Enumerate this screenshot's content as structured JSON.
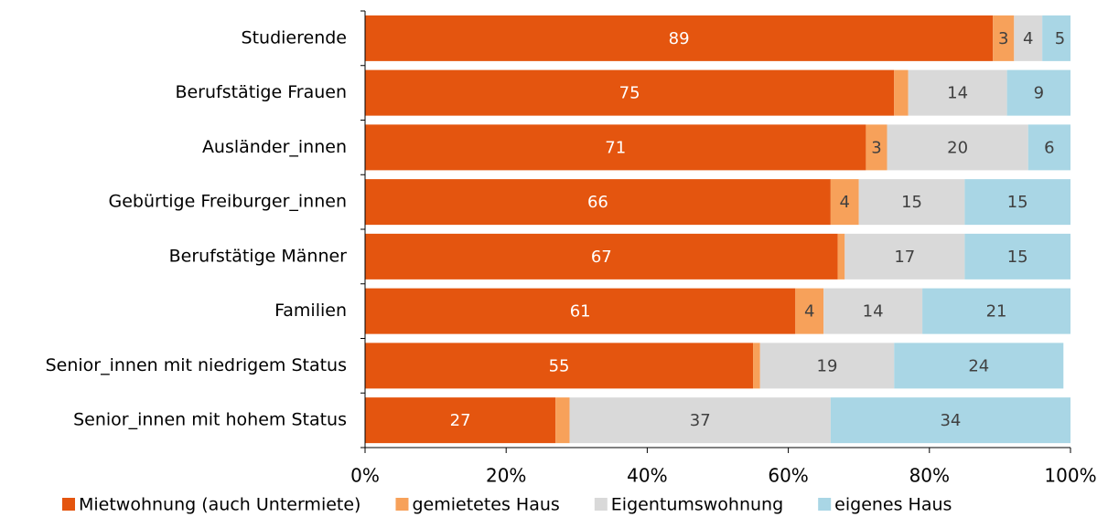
{
  "chart_data": {
    "type": "stacked-bar-horizontal",
    "categories": [
      "Studierende",
      "Berufstätige Frauen",
      "Ausländer_innen",
      "Gebürtige Freiburger_innen",
      "Berufstätige Männer",
      "Familien",
      "Senior_innen mit niedrigem Status",
      "Senior_innen mit hohem Status"
    ],
    "series": [
      {
        "name": "Mietwohnung (auch Untermiete)",
        "color": "#e4550f",
        "label_color": "#ffffff",
        "values": [
          89,
          75,
          71,
          66,
          67,
          61,
          55,
          27
        ]
      },
      {
        "name": "gemietetes Haus",
        "color": "#f7a15a",
        "label_color": "#404040",
        "values": [
          3,
          2,
          3,
          4,
          1,
          4,
          1,
          2
        ],
        "value_labels": [
          "3",
          null,
          "3",
          "4",
          null,
          "4",
          null,
          null
        ]
      },
      {
        "name": "Eigentumswohnung",
        "color": "#d9d9d9",
        "label_color": "#404040",
        "values": [
          4,
          14,
          20,
          15,
          17,
          14,
          19,
          37
        ]
      },
      {
        "name": "eigenes Haus",
        "color": "#a9d6e5",
        "label_color": "#404040",
        "values": [
          5,
          9,
          6,
          15,
          15,
          21,
          24,
          34
        ]
      }
    ],
    "xlim": [
      0,
      100
    ],
    "xticks": [
      {
        "value": 0,
        "label": "0%"
      },
      {
        "value": 20,
        "label": "20%"
      },
      {
        "value": 40,
        "label": "40%"
      },
      {
        "value": 60,
        "label": "60%"
      },
      {
        "value": 80,
        "label": "80%"
      },
      {
        "value": 100,
        "label": "100%"
      }
    ],
    "legend": "bottom"
  }
}
